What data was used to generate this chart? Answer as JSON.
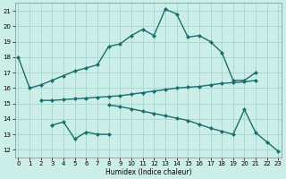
{
  "xlabel": "Humidex (Indice chaleur)",
  "bg_color": "#cceee8",
  "grid_color": "#aad8d2",
  "line_color": "#1a6e6e",
  "markersize": 2.5,
  "linewidth": 1.0,
  "series": [
    {
      "x": [
        0,
        1,
        2,
        3,
        4,
        5,
        6,
        7,
        8,
        9,
        10,
        11,
        12,
        13,
        14,
        15,
        16,
        17,
        18,
        19,
        20,
        21
      ],
      "y": [
        18.0,
        16.0,
        16.2,
        16.5,
        16.8,
        17.1,
        17.3,
        17.5,
        18.7,
        18.85,
        19.4,
        19.8,
        19.4,
        21.1,
        20.8,
        19.3,
        19.4,
        19.0,
        18.3,
        16.5,
        16.5,
        17.0
      ]
    },
    {
      "x": [
        2,
        3,
        4,
        5,
        6,
        7,
        8,
        9,
        10,
        11,
        12,
        13,
        14,
        15,
        16,
        17,
        18,
        19,
        20,
        21
      ],
      "y": [
        15.2,
        15.2,
        15.25,
        15.3,
        15.35,
        15.4,
        15.45,
        15.5,
        15.6,
        15.7,
        15.8,
        15.9,
        16.0,
        16.05,
        16.1,
        16.2,
        16.3,
        16.35,
        16.4,
        16.5
      ]
    },
    {
      "x": [
        3,
        4,
        5,
        6,
        7,
        8
      ],
      "y": [
        13.6,
        13.8,
        12.7,
        13.15,
        13.0,
        13.0
      ]
    },
    {
      "x": [
        8,
        9,
        10,
        11,
        12,
        13,
        14,
        15,
        16,
        17,
        18,
        19,
        20,
        21,
        22,
        23
      ],
      "y": [
        14.9,
        14.8,
        14.65,
        14.5,
        14.35,
        14.2,
        14.05,
        13.9,
        13.65,
        13.4,
        13.2,
        13.0,
        14.6,
        13.1,
        12.5,
        11.9
      ]
    }
  ],
  "xlim": [
    -0.3,
    23.3
  ],
  "ylim": [
    11.5,
    21.5
  ],
  "yticks": [
    12,
    13,
    14,
    15,
    16,
    17,
    18,
    19,
    20,
    21
  ],
  "xticks": [
    0,
    1,
    2,
    3,
    4,
    5,
    6,
    7,
    8,
    9,
    10,
    11,
    12,
    13,
    14,
    15,
    16,
    17,
    18,
    19,
    20,
    21,
    22,
    23
  ]
}
